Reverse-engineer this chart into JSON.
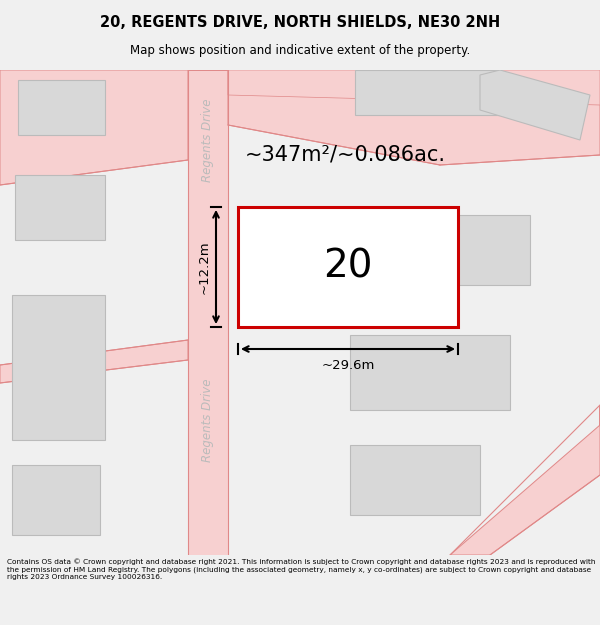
{
  "title_line1": "20, REGENTS DRIVE, NORTH SHIELDS, NE30 2NH",
  "title_line2": "Map shows position and indicative extent of the property.",
  "area_text": "~347m²/~0.086ac.",
  "property_number": "20",
  "width_label": "~29.6m",
  "height_label": "~12.2m",
  "footer_text": "Contains OS data © Crown copyright and database right 2021. This information is subject to Crown copyright and database rights 2023 and is reproduced with the permission of HM Land Registry. The polygons (including the associated geometry, namely x, y co-ordinates) are subject to Crown copyright and database rights 2023 Ordnance Survey 100026316.",
  "map_bg": "#ffffff",
  "plot_color": "#cc0000",
  "road_fill": "#f7d0d0",
  "road_edge": "#e08888",
  "bld_fill": "#d8d8d8",
  "bld_edge": "#bbbbbb",
  "street_label_color": "#bbbbbb",
  "title_bg": "#f0f0f0",
  "footer_bg": "#f0f0f0"
}
